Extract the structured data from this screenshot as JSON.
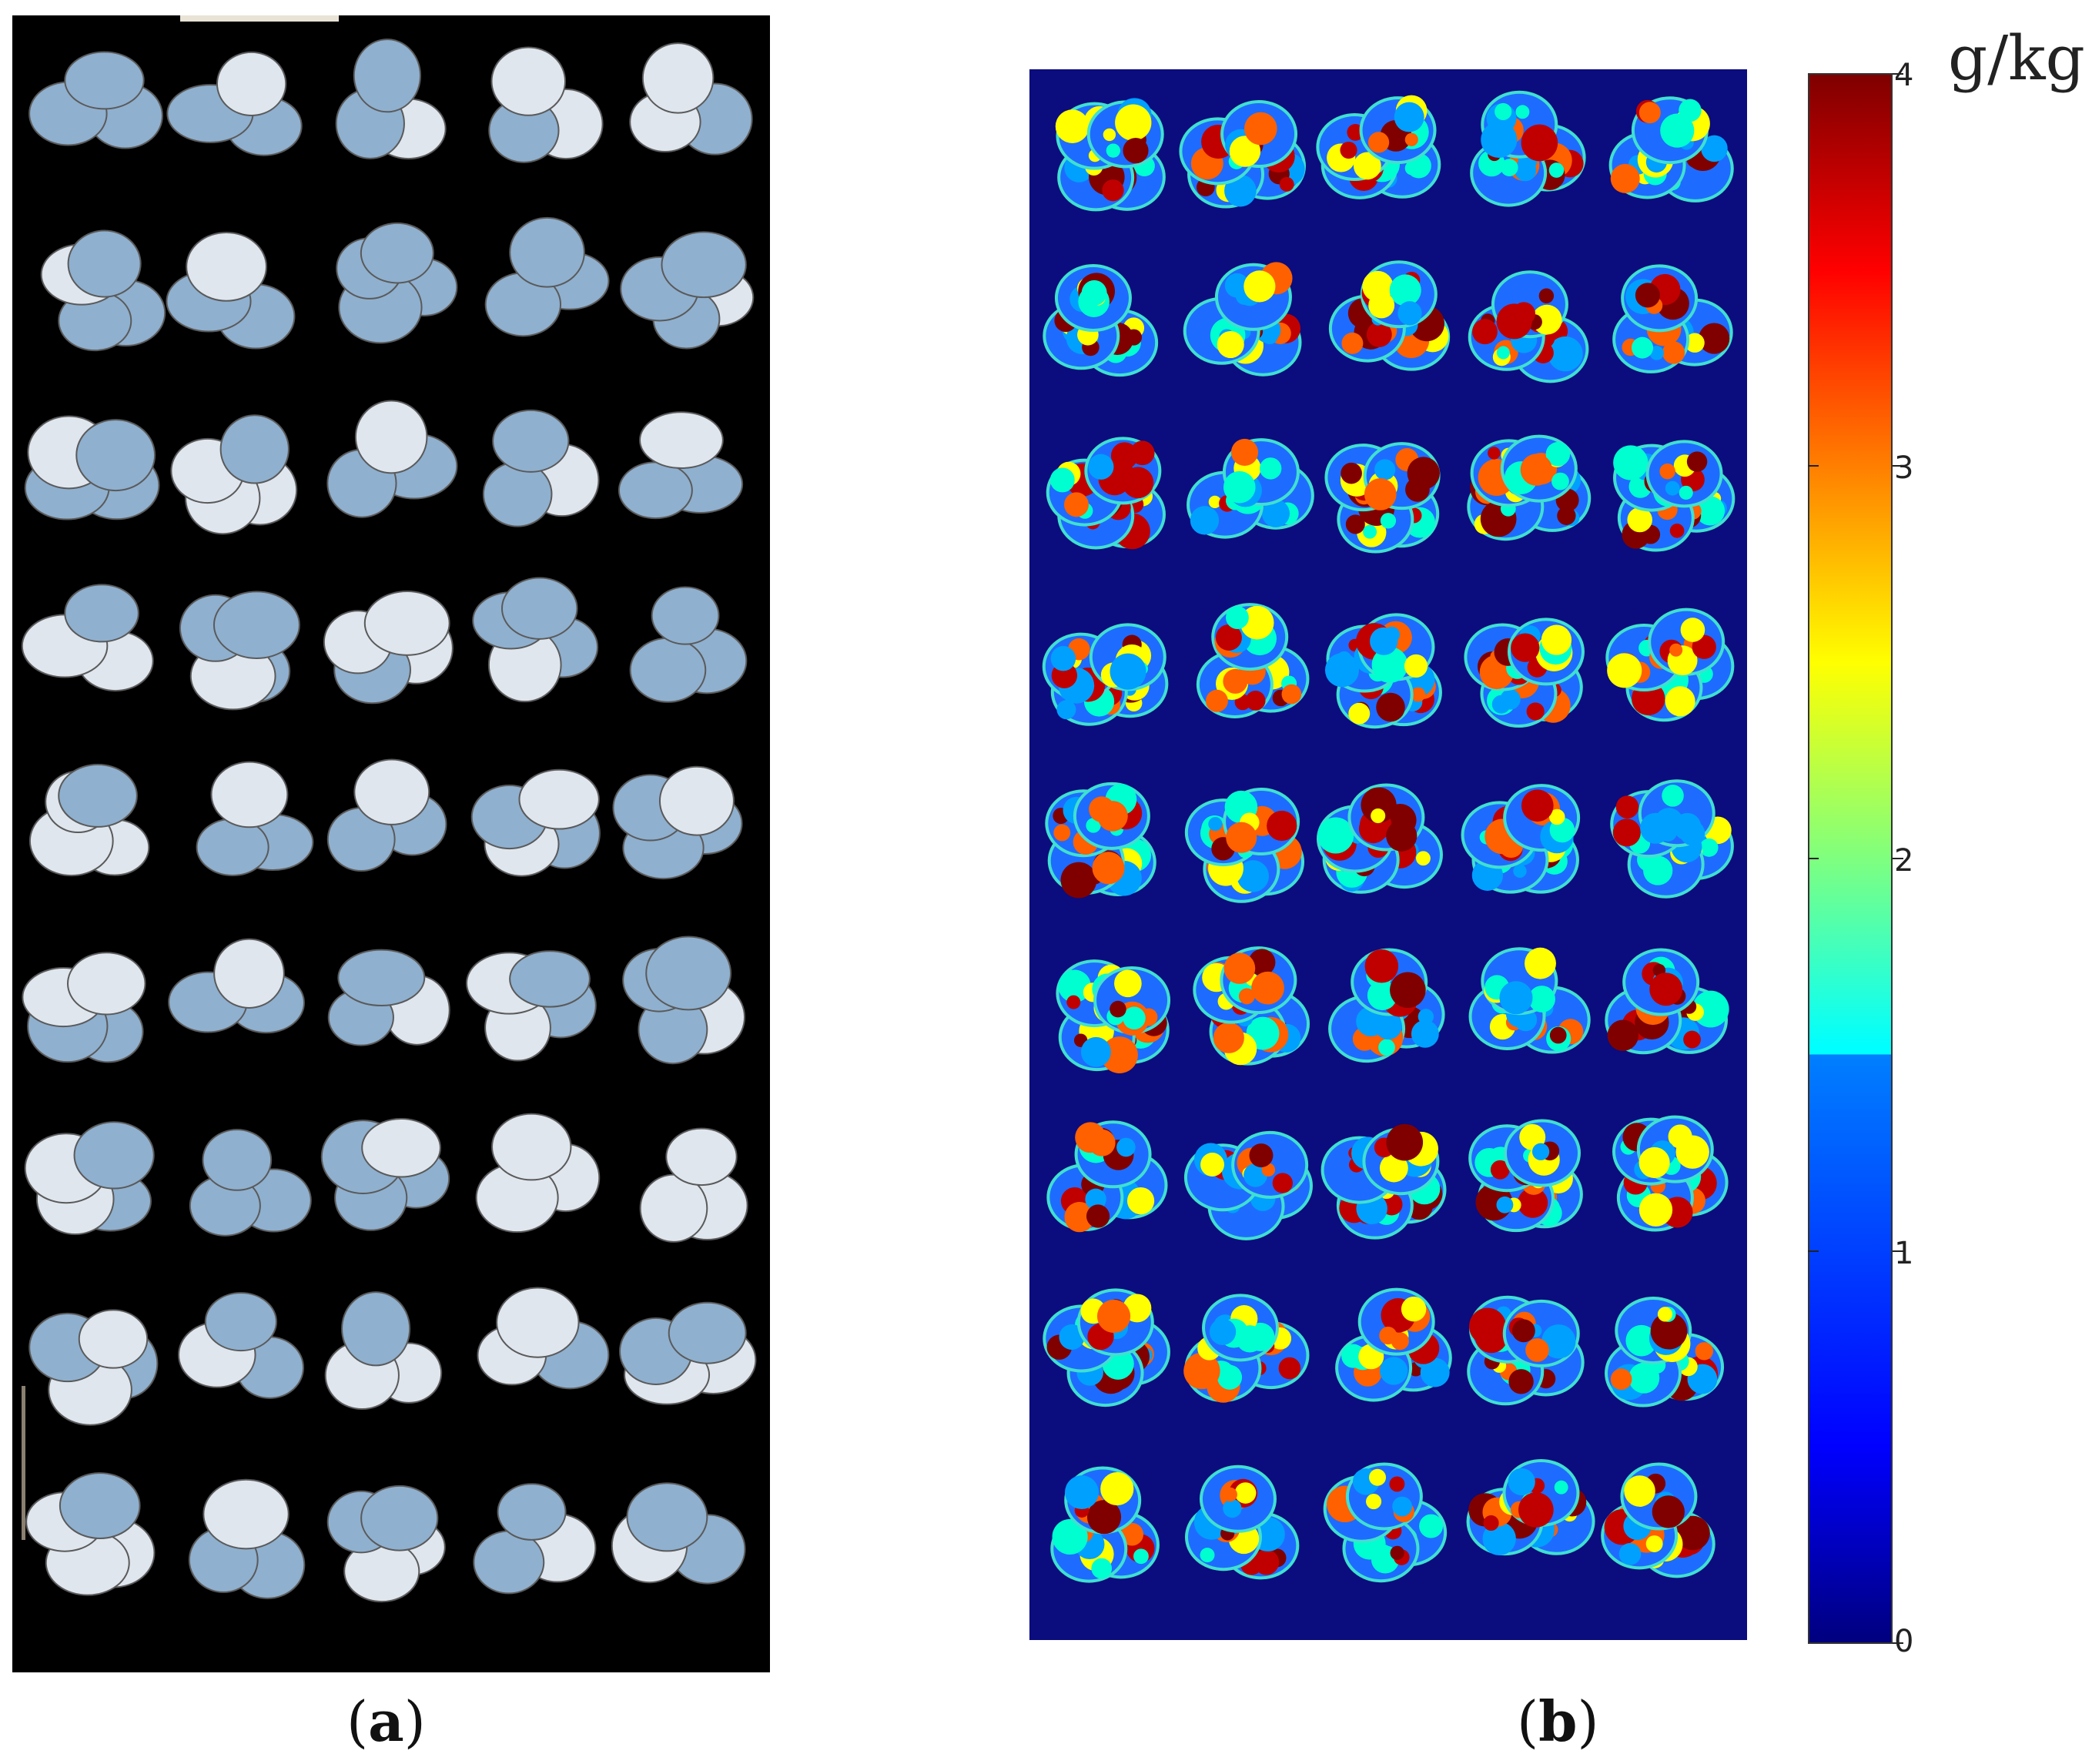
{
  "panel_a": {
    "caption_open": "(",
    "caption_letter": "a",
    "caption_close": ")"
  },
  "panel_b": {
    "caption_open": "(",
    "caption_letter": "b",
    "caption_close": ")"
  },
  "colorbar": {
    "unit": "g/kg",
    "ticks": [
      "4",
      "3",
      "2",
      "1",
      "0"
    ],
    "min": 0,
    "max": 4,
    "colormap": "jet"
  },
  "colors": {
    "background_a": "#000000",
    "background_b": "#0b0c7e",
    "specimen_light": "#dfe6ee",
    "specimen_blue": "#8fb0cf"
  }
}
